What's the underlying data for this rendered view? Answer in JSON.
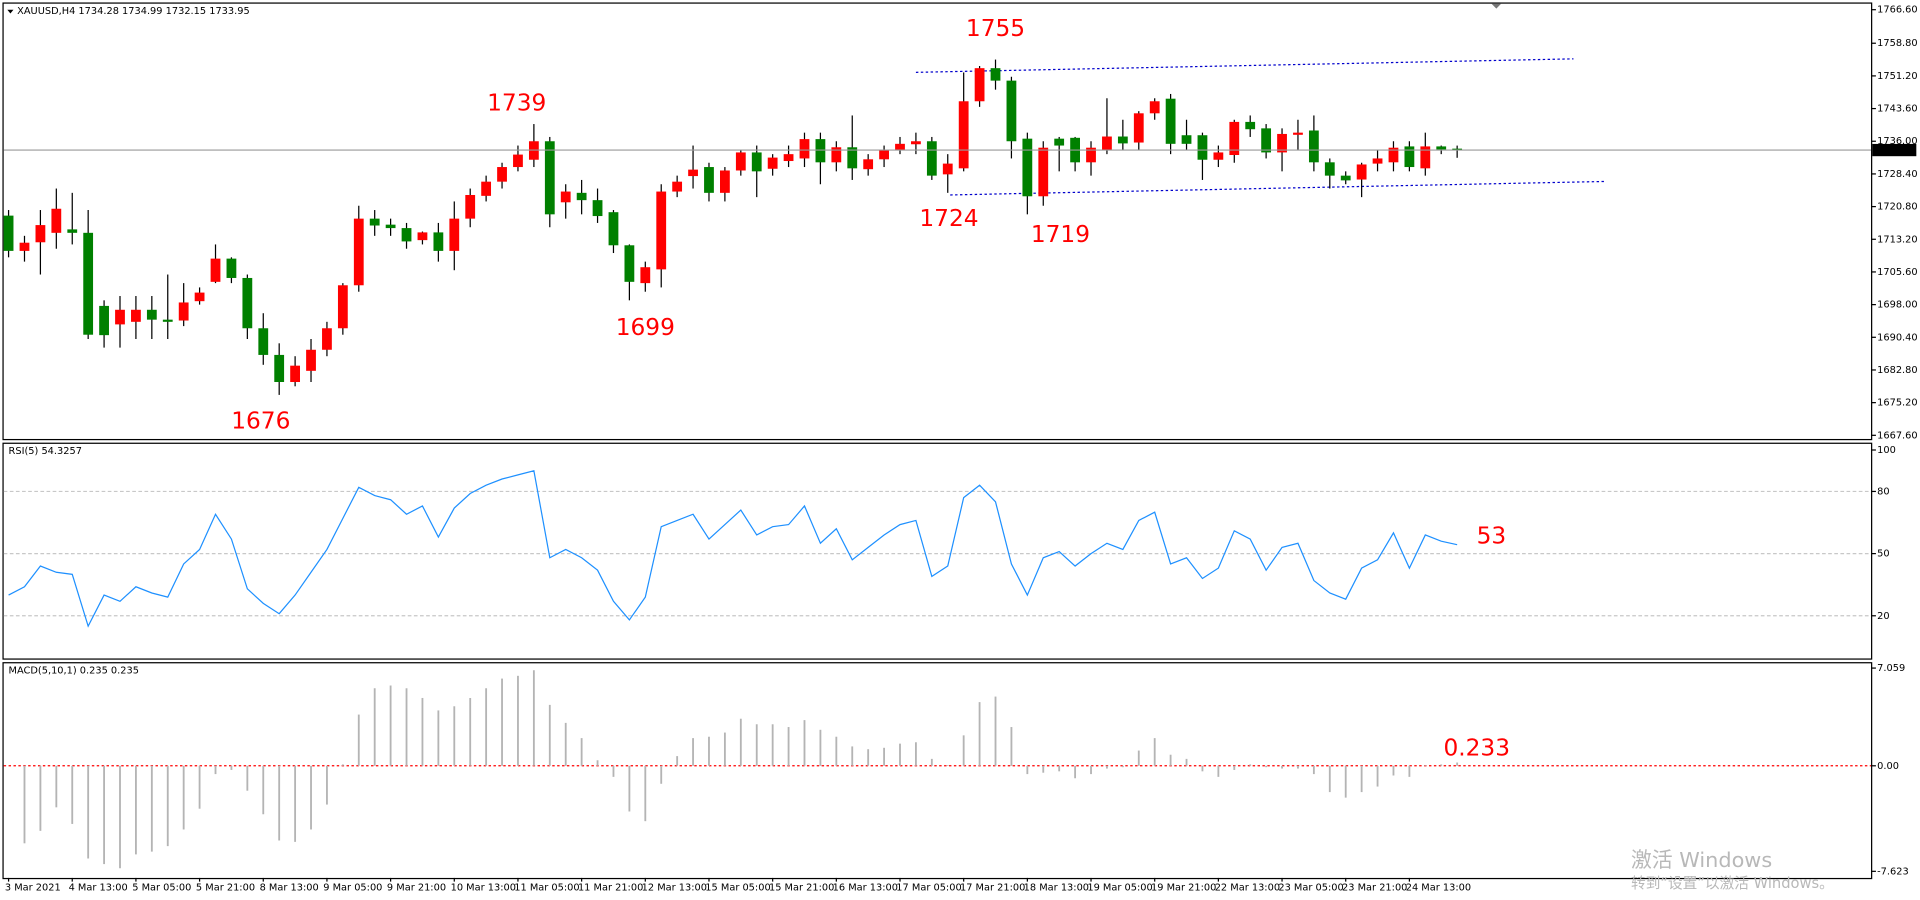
{
  "chart_data": [
    {
      "type": "candlestick",
      "title": "XAUUSD,H4  1734.28 1734.99 1732.15 1733.95",
      "categories": [
        "3 Mar 2021",
        null,
        null,
        null,
        "4 Mar 13:00",
        null,
        null,
        null,
        "5 Mar 05:00",
        null,
        null,
        null,
        "5 Mar 21:00",
        null,
        null,
        null,
        "8 Mar 13:00",
        null,
        null,
        null,
        "9 Mar 05:00",
        null,
        null,
        null,
        "9 Mar 21:00",
        null,
        null,
        null,
        "10 Mar 13:00",
        null,
        null,
        null,
        "11 Mar 05:00",
        null,
        null,
        null,
        "11 Mar 21:00",
        null,
        null,
        null,
        "12 Mar 13:00",
        null,
        null,
        null,
        "15 Mar 05:00",
        null,
        null,
        null,
        "15 Mar 21:00",
        null,
        null,
        null,
        "16 Mar 13:00",
        null,
        null,
        null,
        "17 Mar 05:00",
        null,
        null,
        null,
        "17 Mar 21:00",
        null,
        null,
        null,
        "18 Mar 13:00",
        null,
        null,
        null,
        "19 Mar 05:00",
        null,
        null,
        null,
        "19 Mar 21:00",
        null,
        null,
        null,
        "22 Mar 13:00",
        null,
        null,
        null,
        "23 Mar 05:00",
        null,
        null,
        null,
        "23 Mar 21:00",
        null,
        null,
        null,
        "24 Mar 13:00",
        null,
        null,
        null
      ],
      "open": [
        1718.7,
        1710.5,
        1712.5,
        1714.7,
        1715.5,
        1714.7,
        1697.7,
        1693.4,
        1694,
        1696.8,
        1694.5,
        1694.3,
        1698.8,
        1703.3,
        1708.7,
        1704.2,
        1692.5,
        1686.3,
        1680,
        1682.6,
        1687.5,
        1692.5,
        1702.5,
        1718,
        1716.6,
        1715.8,
        1713,
        1714.8,
        1710.5,
        1718,
        1723.3,
        1726.6,
        1730,
        1731.7,
        1736,
        1721.8,
        1724,
        1722.3,
        1719.5,
        1711.8,
        1703,
        1706.2,
        1724.3,
        1727.9,
        1730,
        1724,
        1729.2,
        1733.4,
        1729.6,
        1731.4,
        1732,
        1736.5,
        1731.1,
        1734.6,
        1729.5,
        1731.8,
        1734,
        1735.3,
        1736,
        1728.3,
        1729.7,
        1745.3,
        1753,
        1750.1,
        1736.6,
        1723.2,
        1736.6,
        1736.8,
        1731.1,
        1734,
        1737.1,
        1735.7,
        1742.5,
        1745.9,
        1737.4,
        1737.4,
        1731.7,
        1732.8,
        1740.5,
        1739,
        1733.4,
        1737.5,
        1738.5,
        1731.1,
        1728,
        1727.1,
        1730.8,
        1731.1,
        1734.8,
        1729.7,
        1734.8,
        1734.28
      ],
      "high": [
        1720,
        1714,
        1720,
        1725,
        1724,
        1720,
        1699,
        1700,
        1700,
        1700,
        1705,
        1703,
        1702,
        1712,
        1709,
        1705,
        1696,
        1689,
        1686,
        1690,
        1694,
        1703,
        1721,
        1720,
        1718,
        1717,
        1715,
        1717,
        1722,
        1725,
        1728,
        1731,
        1735,
        1740,
        1737,
        1726,
        1727,
        1725,
        1720,
        1712,
        1708,
        1726,
        1728,
        1735,
        1731,
        1730,
        1734,
        1735,
        1733,
        1735,
        1738,
        1738,
        1736,
        1742,
        1733,
        1735,
        1737,
        1738,
        1737,
        1733,
        1752,
        1753.5,
        1755,
        1751,
        1738,
        1736,
        1737,
        1737,
        1736,
        1746,
        1741,
        1743,
        1746,
        1747,
        1741,
        1738,
        1735,
        1741,
        1742,
        1740,
        1739,
        1741,
        1742,
        1732,
        1729,
        1731,
        1734,
        1736,
        1736,
        1738,
        1735,
        1734.99
      ],
      "low": [
        1709,
        1708,
        1705,
        1711,
        1712,
        1690,
        1688,
        1688,
        1690,
        1690,
        1690,
        1693,
        1698,
        1703,
        1703,
        1690,
        1684,
        1677,
        1679,
        1680,
        1686,
        1691,
        1701,
        1714,
        1714,
        1711,
        1712,
        1708,
        1706,
        1716,
        1722,
        1725,
        1729,
        1730,
        1716,
        1718,
        1719,
        1717,
        1710,
        1699,
        1701,
        1702,
        1723,
        1725,
        1722,
        1722,
        1728,
        1723,
        1728,
        1730,
        1730,
        1726,
        1729,
        1727,
        1728,
        1730,
        1733,
        1733,
        1727,
        1724,
        1729,
        1744,
        1748,
        1732,
        1719,
        1721,
        1729,
        1729,
        1728,
        1733,
        1734,
        1734,
        1741,
        1733,
        1734,
        1727,
        1730,
        1731,
        1737,
        1732,
        1729,
        1734,
        1729,
        1725,
        1726,
        1723,
        1729,
        1729,
        1729,
        1728,
        1733,
        1732.15
      ],
      "close": [
        1710.5,
        1712.4,
        1716.5,
        1720.3,
        1714.7,
        1691,
        1690.9,
        1696.8,
        1696.8,
        1694.5,
        1694,
        1698.5,
        1700.8,
        1708.7,
        1704.2,
        1692.5,
        1686.3,
        1680,
        1683.8,
        1687.5,
        1692.5,
        1702.5,
        1718,
        1716.4,
        1715.8,
        1712.7,
        1714.8,
        1710.5,
        1718,
        1723.5,
        1726.6,
        1730,
        1732.9,
        1736,
        1719,
        1724.3,
        1722.3,
        1718.6,
        1711.8,
        1703.3,
        1706.7,
        1724.3,
        1726.6,
        1729.4,
        1724,
        1729.2,
        1733.4,
        1729,
        1732.2,
        1733,
        1736.5,
        1731.1,
        1734.6,
        1729.7,
        1731.8,
        1734,
        1735.4,
        1736,
        1728,
        1730.8,
        1745.3,
        1753,
        1750.1,
        1736,
        1723.2,
        1734.5,
        1735,
        1731.1,
        1734.5,
        1737.1,
        1735.5,
        1742.5,
        1745.3,
        1735.4,
        1735.4,
        1731.7,
        1733.4,
        1740.5,
        1738.8,
        1733.4,
        1737.7,
        1738,
        1731.1,
        1728,
        1726.9,
        1730.6,
        1732,
        1734.5,
        1730,
        1734.8,
        1734.1,
        1733.95
      ],
      "up_color": "#ff0000",
      "down_color": "#008000",
      "current_price": 1733.95,
      "ylim": [
        1666.75,
        1768.0
      ],
      "yticks": [
        {
          "value": 1766.6,
          "label": "1766.60"
        },
        {
          "value": 1758.8,
          "label": "1758.80"
        },
        {
          "value": 1751.2,
          "label": "1751.20"
        },
        {
          "value": 1743.6,
          "label": "1743.60"
        },
        {
          "value": 1736,
          "label": "1736.00"
        },
        {
          "value": 1728.4,
          "label": "1728.40"
        },
        {
          "value": 1720.8,
          "label": "1720.80"
        },
        {
          "value": 1713.2,
          "label": "1713.20"
        },
        {
          "value": 1705.6,
          "label": "1705.60"
        },
        {
          "value": 1698,
          "label": "1698.00"
        },
        {
          "value": 1690.4,
          "label": "1690.40"
        },
        {
          "value": 1682.8,
          "label": "1682.80"
        },
        {
          "value": 1675.2,
          "label": "1675.20"
        },
        {
          "value": 1667.6,
          "label": "1667.60"
        }
      ],
      "annotations": [
        "1755",
        "1739",
        "1724",
        "1719",
        "1699",
        "1676"
      ]
    },
    {
      "type": "line",
      "title": "RSI(5) 54.3257",
      "color": "#1e90ff",
      "values": [
        30,
        34,
        44,
        41,
        40,
        15,
        30,
        27,
        34,
        31,
        29,
        45,
        52,
        69,
        57,
        33,
        26,
        21,
        30,
        41,
        52,
        67,
        82,
        78,
        76,
        69,
        73,
        58,
        72,
        79,
        83,
        86,
        88,
        90,
        48,
        52,
        48,
        42,
        27,
        18,
        29,
        63,
        66,
        69,
        57,
        64,
        71,
        59,
        63,
        64,
        73,
        55,
        62,
        47,
        53,
        59,
        64,
        66,
        39,
        44,
        77,
        83,
        75,
        45,
        30,
        48,
        51,
        44,
        50,
        55,
        52,
        66,
        70,
        45,
        48,
        38,
        43,
        61,
        57,
        42,
        53,
        55,
        37,
        31,
        28,
        43,
        47,
        60,
        43,
        59,
        56,
        54.3
      ],
      "ylim": [
        0,
        100
      ],
      "yticks": [
        20,
        50,
        80,
        100
      ],
      "grid": true,
      "annotations": [
        "53"
      ]
    },
    {
      "type": "bar",
      "title": "MACD(5,10,1) 0.235 0.235",
      "color": "#b4b4b4",
      "values": [
        null,
        -5.6,
        -4.7,
        -3.0,
        -4.2,
        -6.7,
        -7.1,
        -7.4,
        -6.4,
        -6.2,
        -5.8,
        -4.6,
        -3.1,
        -0.6,
        -0.3,
        -1.8,
        -3.5,
        -5.4,
        -5.5,
        -4.6,
        -2.8,
        0.1,
        3.7,
        5.6,
        5.8,
        5.6,
        4.9,
        4.0,
        4.3,
        4.9,
        5.6,
        6.3,
        6.5,
        6.9,
        4.4,
        3.1,
        2.0,
        0.4,
        -0.8,
        -3.3,
        -4.0,
        -1.3,
        0.7,
        2.0,
        2.1,
        2.4,
        3.4,
        3.0,
        3.0,
        2.8,
        3.3,
        2.6,
        2.1,
        1.4,
        1.2,
        1.3,
        1.6,
        1.7,
        0.5,
        0.05,
        2.2,
        4.6,
        5.0,
        2.8,
        -0.6,
        -0.5,
        -0.4,
        -0.9,
        -0.6,
        -0.2,
        -0.1,
        1.1,
        2.0,
        0.8,
        0.5,
        -0.4,
        -0.8,
        -0.3,
        0.1,
        -0.1,
        -0.2,
        -0.2,
        -0.6,
        -1.9,
        -2.3,
        -1.9,
        -1.5,
        -0.7,
        -0.8,
        0.05,
        0.1,
        0.235
      ],
      "ylim": [
        -8.1,
        7.4
      ],
      "yticks": [
        7.059,
        {
          "value": 0,
          "label": "0.00"
        },
        -7.623
      ],
      "annotations": [
        "0.233"
      ]
    }
  ],
  "watermark": {
    "line1": "激活 Windows",
    "line2": "转到“设置”以激活 Windows。"
  }
}
